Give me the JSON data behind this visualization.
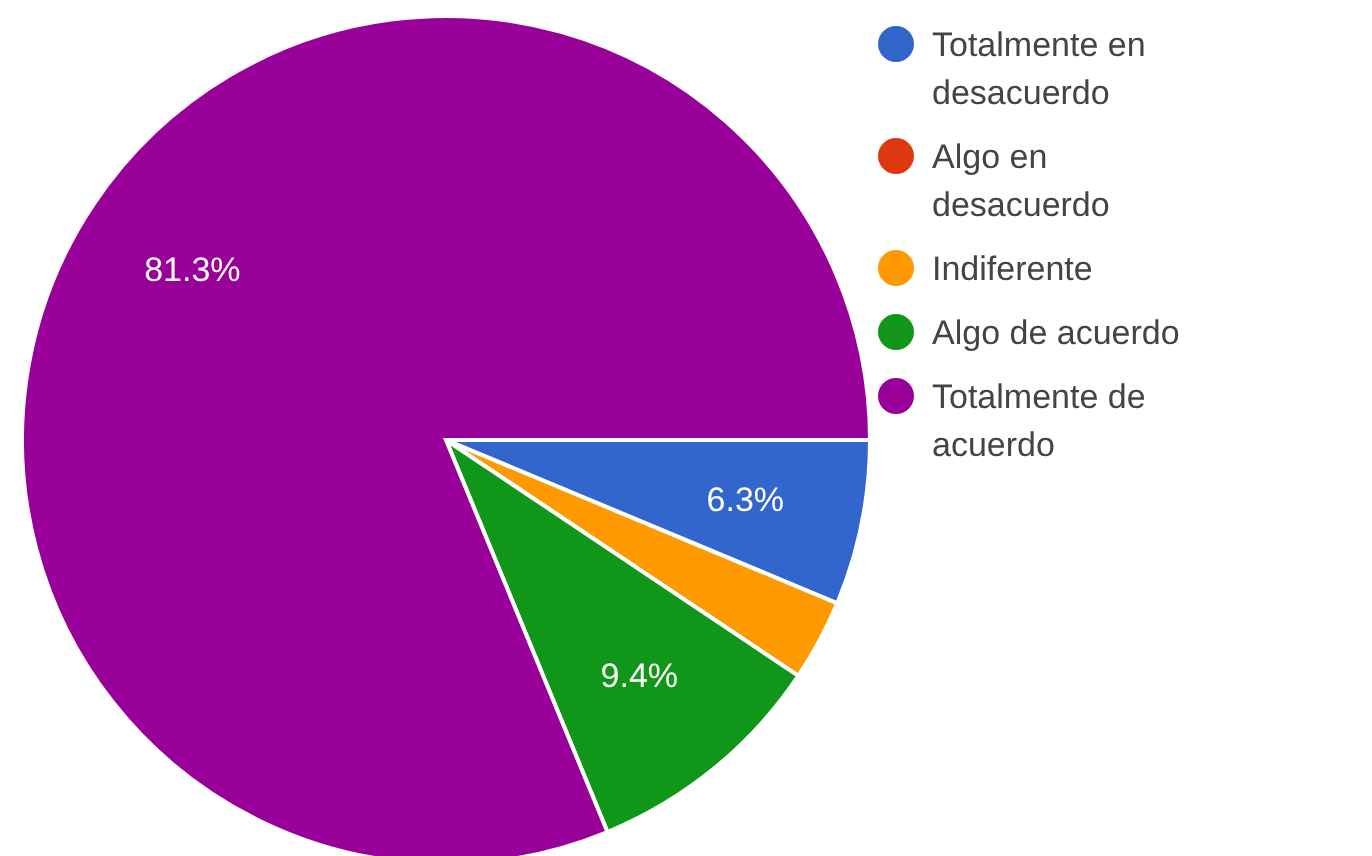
{
  "chart_data": {
    "type": "pie",
    "categories": [
      "Totalmente en desacuerdo",
      "Algo en desacuerdo",
      "Indiferente",
      "Algo de acuerdo",
      "Totalmente de acuerdo"
    ],
    "values": [
      6.3,
      0,
      3.1,
      9.4,
      81.3
    ],
    "colors": [
      "#3366cc",
      "#dc3912",
      "#ff9900",
      "#109618",
      "#990099"
    ],
    "value_labels": [
      "6.3%",
      null,
      null,
      "9.4%",
      "81.3%"
    ],
    "legend": "right"
  }
}
